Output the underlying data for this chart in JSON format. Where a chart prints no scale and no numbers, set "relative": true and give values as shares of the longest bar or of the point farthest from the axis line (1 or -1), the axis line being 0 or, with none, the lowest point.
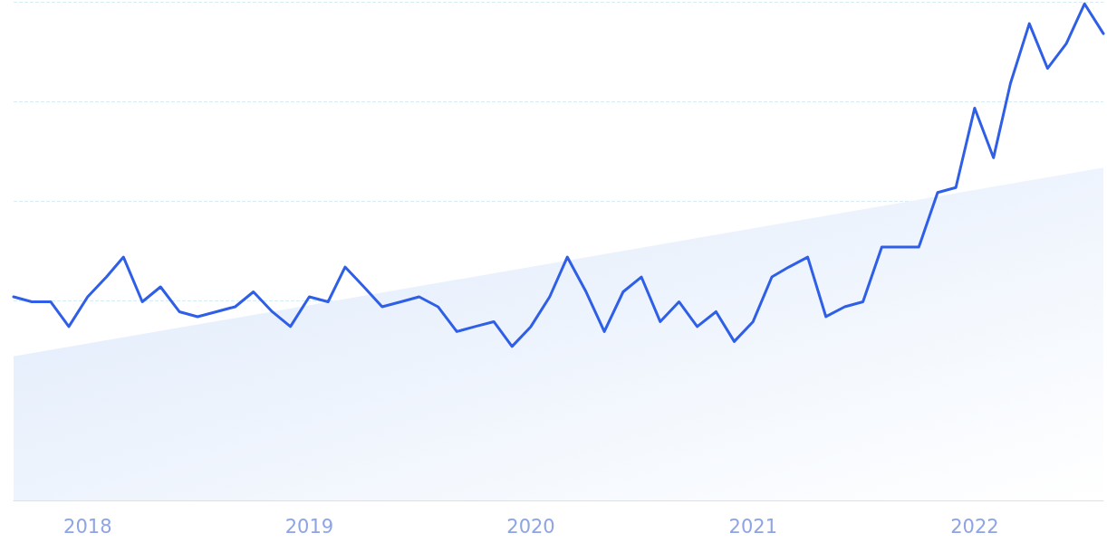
{
  "chart_data": {
    "type": "line",
    "relative": true,
    "marker": "none",
    "line_style": "solid",
    "grid": "y",
    "x": [
      "2017-09",
      "2017-10",
      "2017-11",
      "2017-12",
      "2018-01",
      "2018-02",
      "2018-03",
      "2018-04",
      "2018-05",
      "2018-06",
      "2018-07",
      "2018-08",
      "2018-09",
      "2018-10",
      "2018-11",
      "2018-12",
      "2019-01",
      "2019-02",
      "2019-03",
      "2019-04",
      "2019-05",
      "2019-06",
      "2019-07",
      "2019-08",
      "2019-09",
      "2019-10",
      "2019-11",
      "2019-12",
      "2020-01",
      "2020-02",
      "2020-03",
      "2020-04",
      "2020-05",
      "2020-06",
      "2020-07",
      "2020-08",
      "2020-09",
      "2020-10",
      "2020-11",
      "2020-12",
      "2021-01",
      "2021-02",
      "2021-03",
      "2021-04",
      "2021-05",
      "2021-06",
      "2021-07",
      "2021-08",
      "2021-09",
      "2021-10",
      "2021-11",
      "2021-12",
      "2022-01",
      "2022-02",
      "2022-03",
      "2022-04",
      "2022-05",
      "2022-06",
      "2022-07",
      "2022-08"
    ],
    "xlim": [
      "2017-09",
      "2022-08"
    ],
    "xticks": [
      "2018",
      "2019",
      "2020",
      "2021",
      "2022"
    ],
    "series": [
      {
        "color": "#2f5fe6",
        "values": [
          0.41,
          0.4,
          0.4,
          0.35,
          0.41,
          0.45,
          0.49,
          0.4,
          0.43,
          0.38,
          0.37,
          0.38,
          0.39,
          0.42,
          0.38,
          0.35,
          0.41,
          0.4,
          0.47,
          0.43,
          0.39,
          0.4,
          0.41,
          0.39,
          0.34,
          0.35,
          0.36,
          0.31,
          0.35,
          0.41,
          0.49,
          0.42,
          0.34,
          0.42,
          0.45,
          0.36,
          0.4,
          0.35,
          0.38,
          0.32,
          0.36,
          0.45,
          0.47,
          0.49,
          0.37,
          0.39,
          0.4,
          0.51,
          0.51,
          0.51,
          0.62,
          0.63,
          0.79,
          0.69,
          0.84,
          0.96,
          0.87,
          0.92,
          1,
          0.94
        ]
      },
      {
        "type": "area",
        "color": "#dde9fb",
        "x": [
          "2017-09",
          "2022-08"
        ],
        "values": [
          0.29,
          0.67
        ]
      }
    ]
  }
}
